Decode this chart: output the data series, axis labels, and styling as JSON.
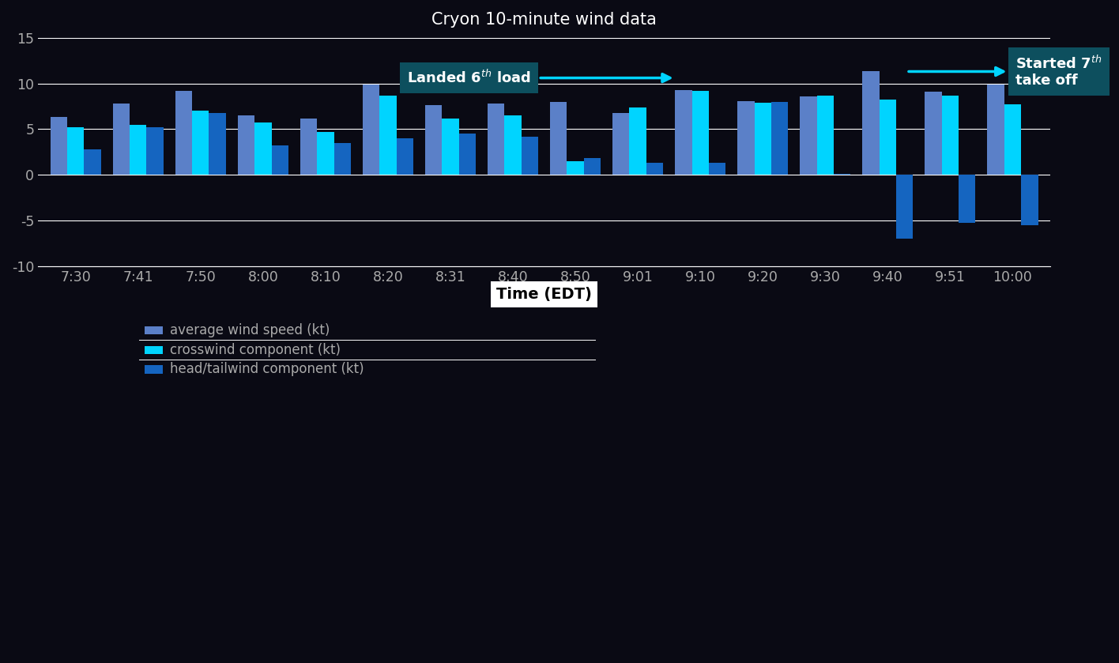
{
  "title": "Cryon 10-minute wind data",
  "xlabel": "Time (EDT)",
  "ylim": [
    -10,
    15
  ],
  "yticks": [
    -10,
    -5,
    0,
    5,
    10,
    15
  ],
  "background_color": "#0a0a14",
  "text_color": "#cccccc",
  "axis_text_color": "#aaaaaa",
  "grid_color": "#888888",
  "time_labels": [
    "7:30",
    "7:41",
    "7:50",
    "8:00",
    "8:10",
    "8:20",
    "8:31",
    "8:40",
    "8:50",
    "9:01",
    "9:10",
    "9:20",
    "9:30",
    "9:40",
    "9:51",
    "10:00"
  ],
  "avg_wind": [
    6.3,
    7.8,
    9.2,
    6.5,
    6.2,
    9.9,
    7.6,
    7.8,
    8.0,
    6.8,
    9.3,
    8.1,
    8.6,
    11.3,
    9.1,
    9.9
  ],
  "crosswind": [
    5.2,
    5.5,
    7.0,
    5.7,
    4.7,
    8.7,
    6.2,
    6.5,
    1.5,
    7.4,
    9.2,
    7.9,
    8.7,
    8.2,
    8.7,
    7.7
  ],
  "headwind": [
    2.8,
    5.2,
    6.8,
    3.2,
    3.5,
    4.0,
    4.5,
    4.2,
    1.8,
    1.3,
    1.3,
    8.0,
    0.1,
    -7.0,
    -5.2,
    -5.5
  ],
  "color_avg": "#5B80C8",
  "color_cross": "#00D4FF",
  "color_head": "#1565C0",
  "annotation_teal": "#0d4f5e"
}
